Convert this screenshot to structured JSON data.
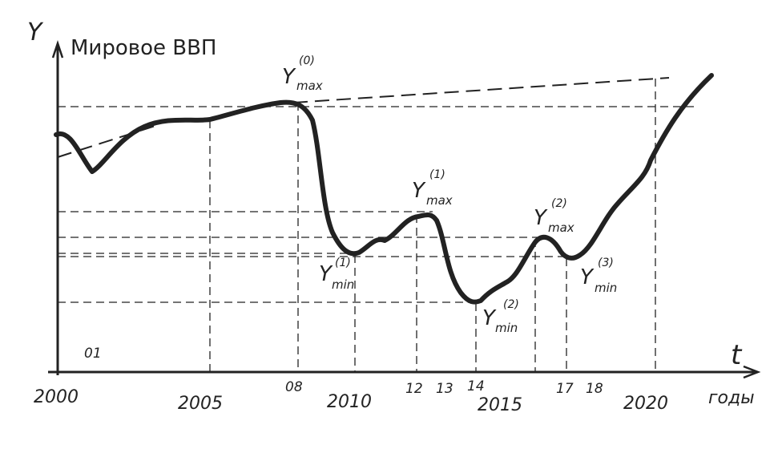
{
  "axis": {
    "y_label": "Y",
    "y_title": "Мировое ВВП",
    "t_label": "t",
    "t_unit": "годы"
  },
  "ticks": {
    "t2000": "2000",
    "t01": "01",
    "t2005": "2005",
    "t08": "08",
    "t2010": "2010",
    "t12": "12",
    "t13": "13",
    "t14": "14",
    "t2015": "2015",
    "t17": "17",
    "t18": "18",
    "t2020": "2020"
  },
  "annotations": {
    "ymax0": {
      "base": "Y",
      "sub": "max",
      "sup": "(0)"
    },
    "ymin1": {
      "base": "Y",
      "sub": "min",
      "sup": "(1)"
    },
    "ymax1": {
      "base": "Y",
      "sub": "max",
      "sup": "(1)"
    },
    "ymin2": {
      "base": "Y",
      "sub": "min",
      "sup": "(2)"
    },
    "ymax2": {
      "base": "Y",
      "sub": "max",
      "sup": "(2)"
    },
    "ymin3": {
      "base": "Y",
      "sub": "min",
      "sup": "(3)"
    }
  },
  "colors": {
    "ink": "#222222",
    "paper": "#ffffff"
  }
}
